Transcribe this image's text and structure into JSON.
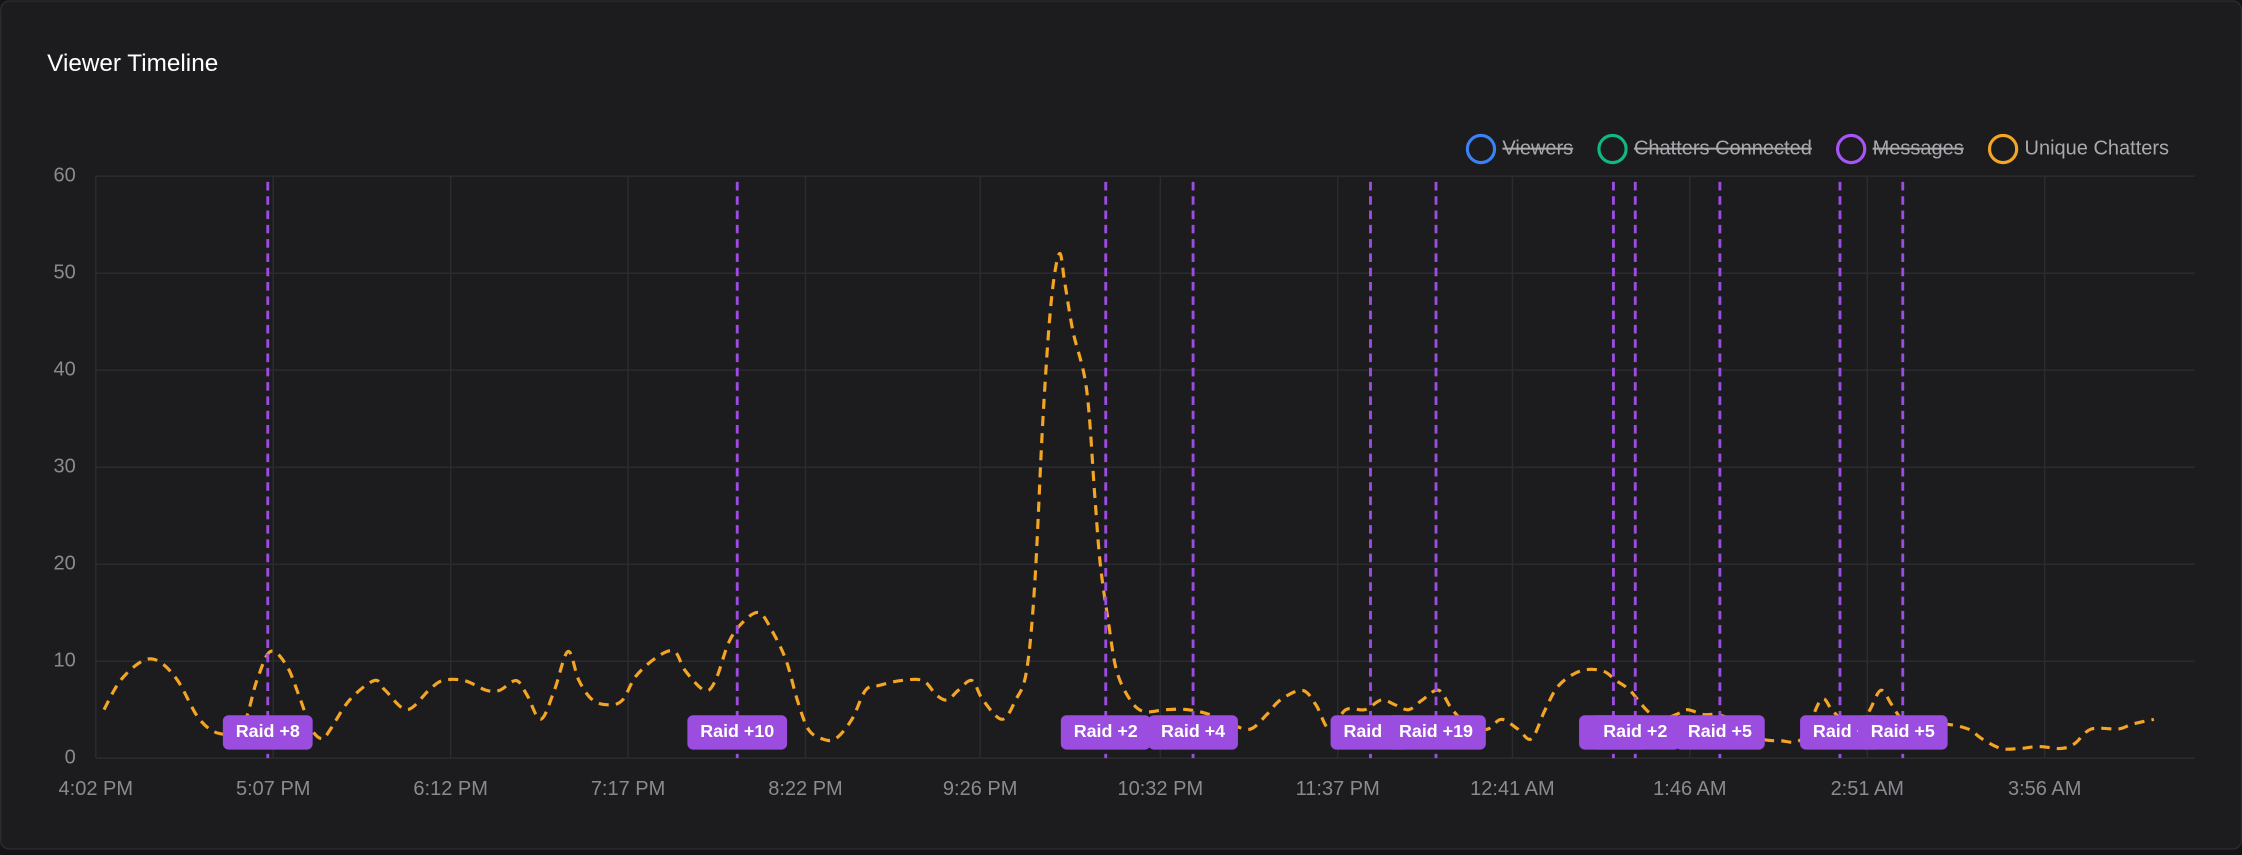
{
  "chart_data": {
    "type": "line",
    "title": "Viewer Timeline",
    "x": [
      3,
      9,
      17,
      23,
      30,
      38,
      46,
      54,
      59,
      64,
      70,
      75,
      79,
      83,
      86,
      93,
      102,
      106,
      114,
      122,
      127,
      135,
      143,
      148,
      154,
      158,
      163,
      168,
      173,
      177,
      182,
      188,
      193,
      198,
      206,
      212,
      216,
      223,
      227,
      232,
      237,
      243,
      248,
      253,
      257,
      261,
      266,
      271,
      277,
      282,
      287,
      295,
      303,
      308,
      312,
      316,
      321,
      325,
      332,
      337,
      341,
      344,
      347,
      350,
      353,
      355,
      358,
      363,
      366,
      368,
      371,
      374,
      379,
      384,
      392,
      400,
      408,
      416,
      423,
      429,
      434,
      442,
      447,
      452,
      458,
      465,
      471,
      476,
      481,
      486,
      492,
      497,
      504,
      510,
      515,
      521,
      526,
      531,
      536,
      544,
      552,
      557,
      562,
      568,
      573,
      579,
      583,
      589,
      594,
      599,
      604,
      610,
      617,
      625,
      632,
      636,
      641,
      646,
      650,
      654,
      658,
      662,
      670,
      678,
      686,
      691,
      698,
      705,
      712,
      720,
      725,
      731,
      741,
      746,
      754
    ],
    "series": [
      {
        "name": "Viewers",
        "color": "#3b82f6",
        "hidden": true
      },
      {
        "name": "Chatters Connected",
        "color": "#10b981",
        "hidden": true
      },
      {
        "name": "Messages",
        "color": "#a855f7",
        "hidden": true
      },
      {
        "name": "Unique Chatters",
        "color": "#f5a524",
        "hidden": false,
        "values": [
          5,
          8,
          10,
          10,
          8,
          4,
          2.5,
          3.5,
          8,
          11,
          9.5,
          6,
          3,
          2,
          3,
          6,
          8,
          7,
          5,
          7,
          8,
          8,
          7,
          7,
          8,
          6.5,
          4,
          7,
          11,
          8,
          6,
          5.5,
          6,
          8.5,
          10.5,
          11,
          9,
          7,
          8,
          12,
          14,
          15,
          13,
          10,
          6,
          3,
          2,
          2,
          4,
          7,
          7.5,
          8,
          8,
          6.5,
          6,
          7,
          8,
          6,
          4,
          6,
          9,
          18,
          35,
          47,
          52,
          49,
          44,
          38,
          27,
          20,
          14,
          9,
          6,
          4.8,
          5,
          5,
          4.5,
          3.5,
          3,
          4.5,
          6,
          7,
          5.5,
          3,
          5,
          5,
          6,
          5.5,
          5,
          6,
          7,
          5,
          3,
          3,
          4,
          3,
          2,
          5,
          7.5,
          9,
          9,
          8,
          7,
          5,
          4,
          4.5,
          5,
          4.5,
          4.5,
          4,
          3,
          2,
          1.8,
          2,
          6,
          5,
          3.5,
          3,
          5,
          7,
          5.5,
          4,
          3.5,
          3.5,
          3,
          2,
          1,
          1,
          1.2,
          1,
          1.5,
          3,
          3,
          3.5,
          4
        ]
      }
    ],
    "annotations": [
      {
        "x": 63,
        "label": "Raid +8"
      },
      {
        "x": 235,
        "label": "Raid +10"
      },
      {
        "x": 370,
        "label": "Raid +2"
      },
      {
        "x": 402,
        "label": "Raid +4"
      },
      {
        "x": 467,
        "label": "Raid +"
      },
      {
        "x": 491,
        "label": "Raid +19"
      },
      {
        "x": 556,
        "label": "R"
      },
      {
        "x": 564,
        "label": "Raid +2"
      },
      {
        "x": 595,
        "label": "Raid +5"
      },
      {
        "x": 639,
        "label": "Raid +"
      },
      {
        "x": 662,
        "label": "Raid +5"
      }
    ],
    "annotation_color": "#9b4ddf",
    "xlim": [
      0,
      769
    ],
    "xticks": [
      {
        "value": 0,
        "label": "4:02 PM"
      },
      {
        "value": 65,
        "label": "5:07 PM"
      },
      {
        "value": 130,
        "label": "6:12 PM"
      },
      {
        "value": 195,
        "label": "7:17 PM"
      },
      {
        "value": 260,
        "label": "8:22 PM"
      },
      {
        "value": 324,
        "label": "9:26 PM"
      },
      {
        "value": 390,
        "label": "10:32 PM"
      },
      {
        "value": 455,
        "label": "11:37 PM"
      },
      {
        "value": 519,
        "label": "12:41 AM"
      },
      {
        "value": 584,
        "label": "1:46 AM"
      },
      {
        "value": 649,
        "label": "2:51 AM"
      },
      {
        "value": 714,
        "label": "3:56 AM"
      }
    ],
    "ylim": [
      0,
      60
    ],
    "yticks": [
      0,
      10,
      20,
      30,
      40,
      50,
      60
    ],
    "grid": true,
    "legend": "top-right",
    "line_style": "dashed"
  }
}
